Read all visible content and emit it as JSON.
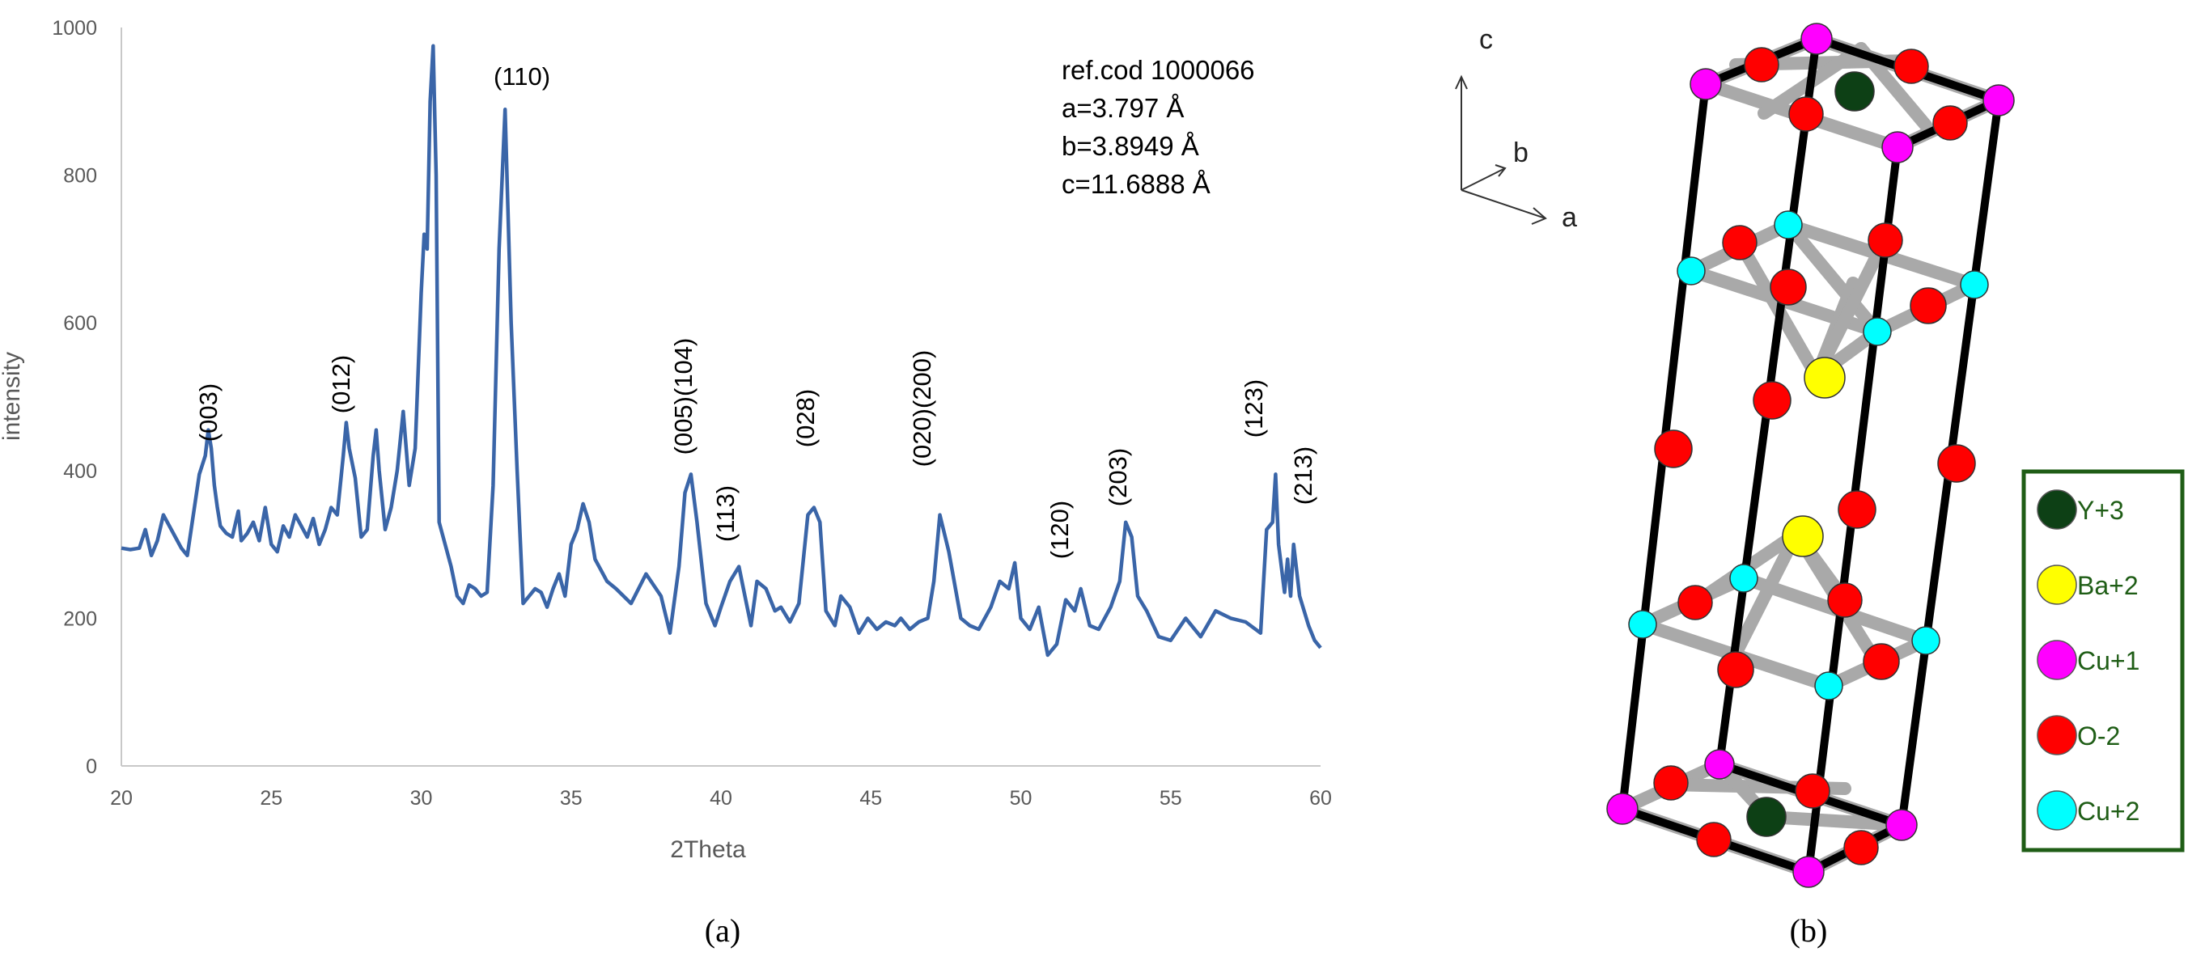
{
  "chart_data": {
    "type": "line",
    "xlabel": "2Theta",
    "ylabel": "intensity",
    "xlim": [
      20,
      60
    ],
    "ylim": [
      0,
      1000
    ],
    "x_ticks": [
      "20",
      "25",
      "30",
      "35",
      "40",
      "45",
      "50",
      "55",
      "60"
    ],
    "y_ticks": [
      "0",
      "200",
      "400",
      "600",
      "800",
      "1000"
    ],
    "grid": "none",
    "line_color": "#3a65a8",
    "series": [
      {
        "x": [
          20,
          20.3,
          20.6,
          20.8,
          21.0,
          21.2,
          21.4,
          21.6,
          21.8,
          22.0,
          22.2,
          22.4,
          22.6,
          22.8,
          22.9,
          23.0,
          23.1,
          23.2,
          23.3,
          23.5,
          23.7,
          23.9,
          24.0,
          24.2,
          24.4,
          24.6,
          24.8,
          25.0,
          25.2,
          25.4,
          25.6,
          25.8,
          26.0,
          26.2,
          26.4,
          26.6,
          26.8,
          27.0,
          27.2,
          27.4,
          27.5,
          27.6,
          27.8,
          28.0,
          28.2,
          28.4,
          28.5,
          28.6,
          28.8,
          29.0,
          29.2,
          29.4,
          29.6,
          29.8,
          30.0,
          30.1,
          30.2,
          30.3,
          30.4,
          30.5,
          30.6,
          30.8,
          31.0,
          31.2,
          31.4,
          31.6,
          31.8,
          32.0,
          32.2,
          32.4,
          32.6,
          32.8,
          33.0,
          33.2,
          33.4,
          33.6,
          33.8,
          34.0,
          34.2,
          34.4,
          34.6,
          34.8,
          35.0,
          35.2,
          35.4,
          35.6,
          35.8,
          36.0,
          36.2,
          36.5,
          37.0,
          37.5,
          38.0,
          38.3,
          38.6,
          38.8,
          39.0,
          39.2,
          39.5,
          39.8,
          40.0,
          40.3,
          40.6,
          40.8,
          41.0,
          41.2,
          41.5,
          41.8,
          42.0,
          42.3,
          42.6,
          42.9,
          43.1,
          43.3,
          43.5,
          43.8,
          44.0,
          44.3,
          44.6,
          44.9,
          45.2,
          45.5,
          45.8,
          46.0,
          46.3,
          46.6,
          46.9,
          47.1,
          47.3,
          47.6,
          48.0,
          48.3,
          48.6,
          49.0,
          49.3,
          49.6,
          49.8,
          50.0,
          50.3,
          50.6,
          50.9,
          51.2,
          51.5,
          51.8,
          52.0,
          52.3,
          52.6,
          53.0,
          53.3,
          53.5,
          53.7,
          53.9,
          54.2,
          54.6,
          55.0,
          55.5,
          56.0,
          56.5,
          57.0,
          57.5,
          58.0,
          58.2,
          58.4,
          58.5,
          58.6,
          58.8,
          58.9,
          59.0,
          59.1,
          59.3,
          59.6,
          59.8,
          60.0
        ],
        "y": [
          295,
          293,
          295,
          320,
          285,
          305,
          340,
          325,
          310,
          295,
          285,
          340,
          395,
          420,
          455,
          430,
          380,
          350,
          325,
          315,
          310,
          345,
          305,
          315,
          330,
          305,
          350,
          300,
          290,
          325,
          310,
          340,
          325,
          310,
          335,
          300,
          320,
          350,
          340,
          420,
          465,
          430,
          390,
          310,
          320,
          420,
          455,
          400,
          320,
          350,
          400,
          480,
          380,
          430,
          640,
          720,
          700,
          900,
          975,
          800,
          330,
          300,
          270,
          230,
          220,
          245,
          240,
          230,
          235,
          380,
          700,
          889,
          600,
          400,
          220,
          230,
          240,
          235,
          215,
          240,
          260,
          230,
          300,
          320,
          355,
          330,
          280,
          265,
          250,
          240,
          220,
          260,
          230,
          180,
          270,
          370,
          395,
          330,
          220,
          190,
          215,
          250,
          270,
          230,
          190,
          250,
          240,
          210,
          215,
          195,
          220,
          340,
          350,
          330,
          210,
          190,
          230,
          215,
          180,
          200,
          185,
          195,
          190,
          200,
          185,
          195,
          200,
          250,
          340,
          290,
          200,
          190,
          185,
          215,
          250,
          240,
          275,
          200,
          185,
          215,
          150,
          165,
          225,
          210,
          240,
          190,
          185,
          215,
          250,
          330,
          310,
          230,
          210,
          175,
          170,
          200,
          175,
          210,
          200,
          195,
          180,
          320,
          330,
          395,
          300,
          235,
          280,
          230,
          300,
          230,
          190,
          170,
          160
        ],
        "color": "#3a65a8"
      }
    ],
    "annotations": [
      "(003)",
      "(012)",
      "(110)",
      "(005)(104)",
      "(113)",
      "(028)",
      "(020)(200)",
      "(120)",
      "(203)",
      "(123)",
      "(213)"
    ],
    "info_lines": [
      "ref.cod 1000066",
      "a=3.797 Å",
      "b=3.8949 Å",
      "c=11.6888 Å"
    ]
  },
  "figure": {
    "panel_a_label": "(a)",
    "panel_b_label": "(b)"
  },
  "crystal": {
    "axes": {
      "c": "c",
      "b": "b",
      "a": "a"
    },
    "legend": [
      {
        "label": "Y+3",
        "color": "#0d4015"
      },
      {
        "label": "Ba+2",
        "color": "#ffff00"
      },
      {
        "label": "Cu+1",
        "color": "#ff00ff"
      },
      {
        "label": "O-2",
        "color": "#ff0000"
      },
      {
        "label": "Cu+2",
        "color": "#00ffff"
      }
    ],
    "legend_border_color": "#1f5d16"
  }
}
